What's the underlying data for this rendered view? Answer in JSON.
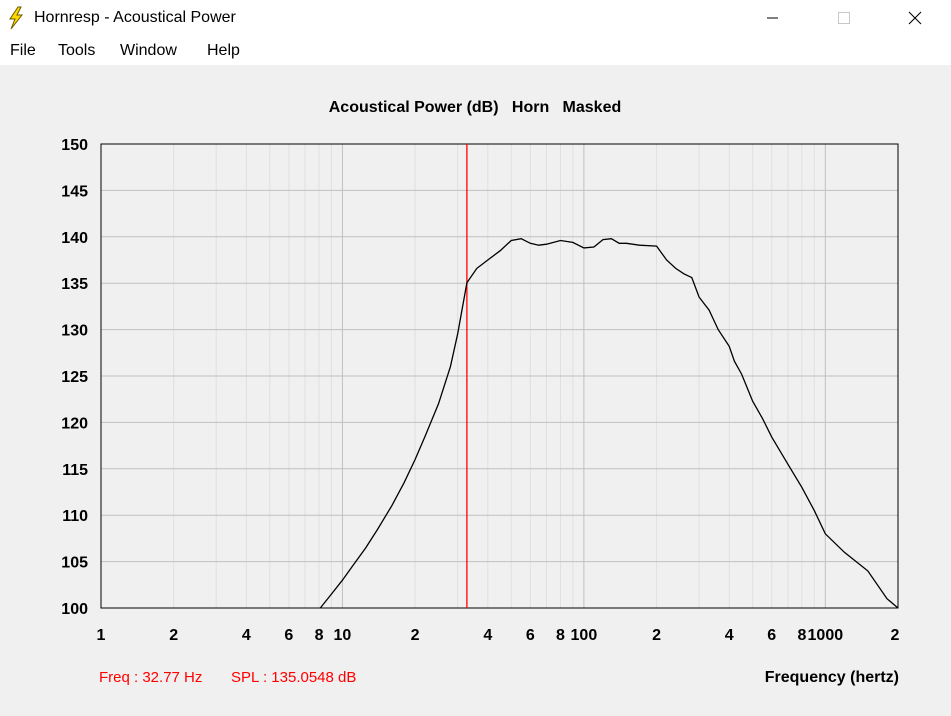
{
  "window": {
    "title": "Hornresp - Acoustical Power",
    "icons": {
      "app": "lightning-bolt-icon",
      "minimize": "minimize-icon",
      "maximize": "maximize-icon",
      "close": "close-icon"
    }
  },
  "menu": {
    "items": [
      "File",
      "Tools",
      "Window",
      "Help"
    ]
  },
  "chart_data": {
    "type": "line",
    "title": "Acoustical Power (dB)   Horn   Masked",
    "xlabel": "Frequency (hertz)",
    "ylabel": "",
    "x_scale": "log",
    "xlim": [
      1,
      2000
    ],
    "ylim": [
      100,
      150
    ],
    "x_tick_labels": [
      "1",
      "2",
      "4",
      "6",
      "8",
      "10",
      "2",
      "4",
      "6",
      "8",
      "100",
      "2",
      "4",
      "6",
      "8",
      "1000",
      "2"
    ],
    "y_ticks": [
      100,
      105,
      110,
      115,
      120,
      125,
      130,
      135,
      140,
      145,
      150
    ],
    "grid": true,
    "line_color": "#000000",
    "cursor": {
      "freq": 32.77,
      "color": "#ff0000"
    },
    "readout": {
      "freq_text": "Freq : 32.77 Hz",
      "spl_text": "SPL : 135.0548 dB",
      "color": "#ff0000"
    },
    "series": [
      {
        "x": [
          8.1,
          9,
          10,
          11,
          12.5,
          14,
          16,
          18,
          20,
          22,
          25,
          28,
          30,
          32.77,
          36,
          40,
          45,
          50,
          55,
          60,
          65,
          70,
          80,
          90,
          100,
          110,
          120,
          130,
          140,
          150,
          170,
          200,
          220,
          240,
          260,
          280,
          300,
          330,
          360,
          400,
          420,
          450,
          500,
          550,
          600,
          700,
          800,
          900,
          1000,
          1200,
          1500,
          1800,
          2000
        ],
        "y": [
          100,
          101.5,
          103,
          104.5,
          106.5,
          108.5,
          111,
          113.5,
          116,
          118.5,
          122,
          126,
          129.5,
          135.05,
          136.6,
          137.5,
          138.5,
          139.6,
          139.8,
          139.3,
          139.1,
          139.2,
          139.6,
          139.4,
          138.8,
          138.9,
          139.7,
          139.8,
          139.3,
          139.3,
          139.1,
          139.0,
          137.5,
          136.6,
          136.0,
          135.6,
          133.5,
          132.1,
          130.0,
          128.2,
          126.6,
          125.2,
          122.3,
          120.4,
          118.4,
          115.5,
          113.0,
          110.5,
          108.0,
          106.0,
          104.0,
          101.0,
          100.0
        ]
      }
    ]
  }
}
